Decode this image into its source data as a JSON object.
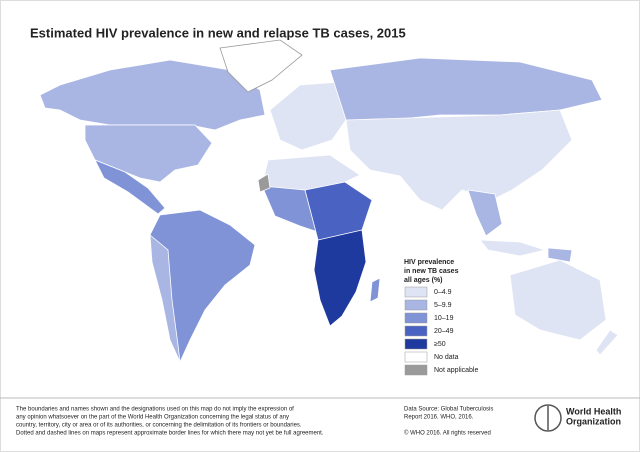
{
  "header": {
    "title": "Estimated HIV prevalence in new and relapse TB cases, 2015"
  },
  "legend": {
    "title": [
      "HIV prevalence",
      "in new TB cases",
      "all ages (%)"
    ],
    "items": [
      {
        "label": "0–4.9",
        "color": "#dfe4f4"
      },
      {
        "label": "5–9.9",
        "color": "#a9b6e4"
      },
      {
        "label": "10–19",
        "color": "#7f93d6"
      },
      {
        "label": "20–49",
        "color": "#4a63c2"
      },
      {
        "label": "≥50",
        "color": "#1f3a9e"
      },
      {
        "label": "No data",
        "color": "#ffffff"
      },
      {
        "label": "Not applicable",
        "color": "#9a9a9a"
      }
    ]
  },
  "footer": {
    "disclaimer": [
      "The boundaries and names shown and the designations used on this map do not imply the expression of",
      "any opinion whatsoever on the part of the World Health Organization concerning the legal status of any",
      "country, territory, city or area or of its authorities, or concerning the delimitation of its frontiers or boundaries.",
      "Dotted and dashed lines on maps represent approximate border lines for which there may not yet be full agreement."
    ],
    "source": [
      "Data Source: Global Tuberculosis",
      "Report 2016. WHO, 2016."
    ],
    "copyright": "© WHO 2016. All rights reserved",
    "logo": [
      "World Health",
      "Organization"
    ]
  }
}
